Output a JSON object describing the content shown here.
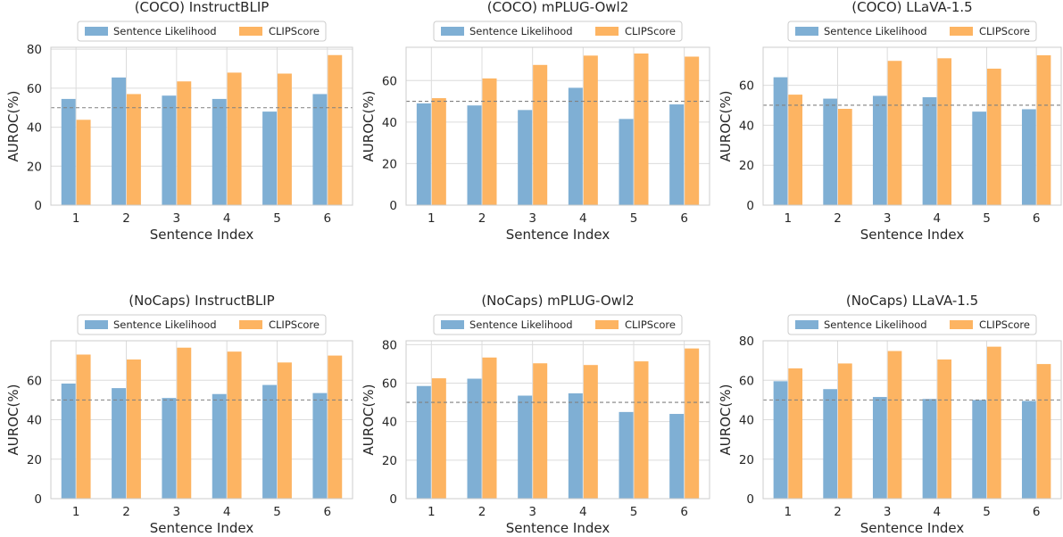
{
  "colors": {
    "sentence_likelihood": "#7fafd4",
    "clipscore": "#fdb462",
    "baseline": "#808080",
    "grid": "#dcdcdc",
    "frame": "#cccccc"
  },
  "chart_data": [
    {
      "type": "bar",
      "title": "(COCO) InstructBLIP",
      "xlabel": "Sentence Index",
      "ylabel": "AUROC(%)",
      "ylim": [
        0,
        81
      ],
      "yticks": [
        "0",
        "20",
        "40",
        "60",
        "80"
      ],
      "categories": [
        "1",
        "2",
        "3",
        "4",
        "5",
        "6"
      ],
      "baseline": 50,
      "legend": "top-center",
      "series": [
        {
          "name": "Sentence Likelihood",
          "values": [
            54.5,
            65.5,
            56.2,
            54.5,
            48.0,
            57.0
          ]
        },
        {
          "name": "CLIPScore",
          "values": [
            43.8,
            57.0,
            63.5,
            68.0,
            67.5,
            77.0
          ]
        }
      ]
    },
    {
      "type": "bar",
      "title": "(COCO) mPLUG-Owl2",
      "xlabel": "Sentence Index",
      "ylabel": "AUROC(%)",
      "ylim": [
        0,
        76
      ],
      "yticks": [
        "0",
        "20",
        "40",
        "60"
      ],
      "categories": [
        "1",
        "2",
        "3",
        "4",
        "5",
        "6"
      ],
      "baseline": 50,
      "legend": "top-center",
      "series": [
        {
          "name": "Sentence Likelihood",
          "values": [
            49.0,
            48.0,
            45.8,
            56.5,
            41.5,
            48.5
          ]
        },
        {
          "name": "CLIPScore",
          "values": [
            51.5,
            61.0,
            67.5,
            72.0,
            73.0,
            71.5
          ]
        }
      ]
    },
    {
      "type": "bar",
      "title": "(COCO) LLaVA-1.5",
      "xlabel": "Sentence Index",
      "ylabel": "AUROC(%)",
      "ylim": [
        0,
        79
      ],
      "yticks": [
        "0",
        "20",
        "40",
        "60"
      ],
      "categories": [
        "1",
        "2",
        "3",
        "4",
        "5",
        "6"
      ],
      "baseline": 50,
      "legend": "top-center",
      "series": [
        {
          "name": "Sentence Likelihood",
          "values": [
            64.0,
            53.3,
            54.7,
            54.0,
            46.8,
            48.0
          ]
        },
        {
          "name": "CLIPScore",
          "values": [
            55.3,
            48.2,
            72.2,
            73.5,
            68.3,
            75.0
          ]
        }
      ]
    },
    {
      "type": "bar",
      "title": "(NoCaps) InstructBLIP",
      "xlabel": "Sentence Index",
      "ylabel": "AUROC(%)",
      "ylim": [
        0,
        80
      ],
      "yticks": [
        "0",
        "20",
        "40",
        "60"
      ],
      "categories": [
        "1",
        "2",
        "3",
        "4",
        "5",
        "6"
      ],
      "baseline": 50,
      "legend": "top-center",
      "series": [
        {
          "name": "Sentence Likelihood",
          "values": [
            58.3,
            56.0,
            51.0,
            53.0,
            57.6,
            53.5
          ]
        },
        {
          "name": "CLIPScore",
          "values": [
            73.0,
            70.5,
            76.5,
            74.5,
            69.0,
            72.5
          ]
        }
      ]
    },
    {
      "type": "bar",
      "title": "(NoCaps) mPLUG-Owl2",
      "xlabel": "Sentence Index",
      "ylabel": "AUROC(%)",
      "ylim": [
        0,
        82
      ],
      "yticks": [
        "0",
        "20",
        "40",
        "60",
        "80"
      ],
      "categories": [
        "1",
        "2",
        "3",
        "4",
        "5",
        "6"
      ],
      "baseline": 50,
      "legend": "top-center",
      "series": [
        {
          "name": "Sentence Likelihood",
          "values": [
            58.5,
            62.3,
            53.5,
            54.7,
            45.0,
            44.0
          ]
        },
        {
          "name": "CLIPScore",
          "values": [
            62.5,
            73.3,
            70.3,
            69.4,
            71.3,
            78.0
          ]
        }
      ]
    },
    {
      "type": "bar",
      "title": "(NoCaps) LLaVA-1.5",
      "xlabel": "Sentence Index",
      "ylabel": "AUROC(%)",
      "ylim": [
        0,
        80
      ],
      "yticks": [
        "0",
        "20",
        "40",
        "60",
        "80"
      ],
      "categories": [
        "1",
        "2",
        "3",
        "4",
        "5",
        "6"
      ],
      "baseline": 50,
      "legend": "top-center",
      "series": [
        {
          "name": "Sentence Likelihood",
          "values": [
            59.5,
            55.5,
            51.5,
            50.5,
            50.0,
            49.5
          ]
        },
        {
          "name": "CLIPScore",
          "values": [
            66.0,
            68.5,
            74.8,
            70.5,
            77.0,
            68.2
          ]
        }
      ]
    }
  ]
}
